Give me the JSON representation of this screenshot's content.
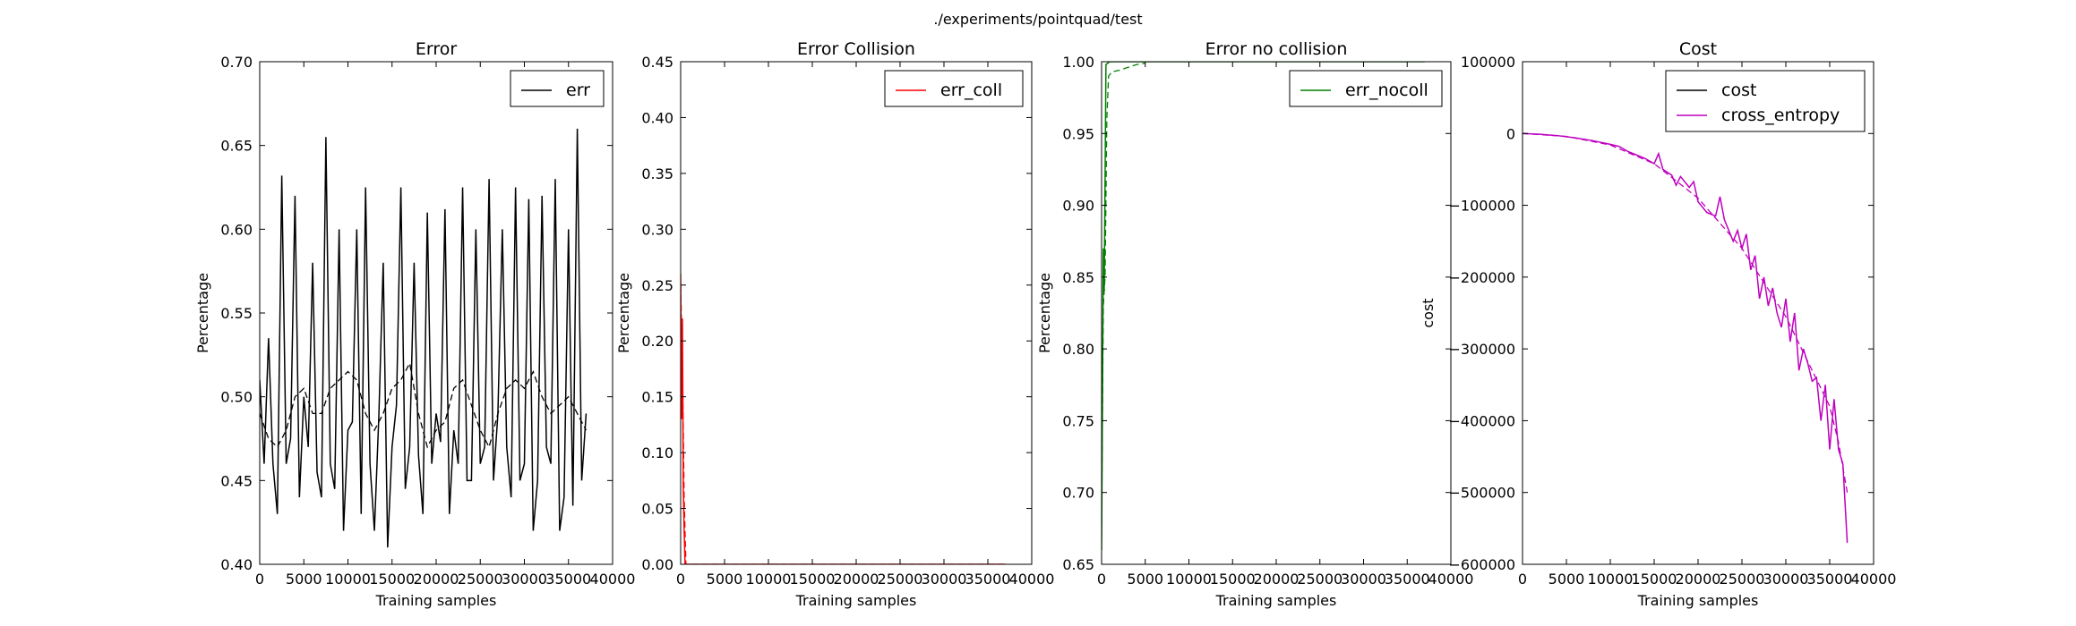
{
  "suptitle": "./experiments/pointquad/test",
  "chart_data": [
    {
      "type": "line",
      "title": "Error",
      "xlabel": "Training samples",
      "ylabel": "Percentage",
      "xlim": [
        0,
        40000
      ],
      "ylim": [
        0.4,
        0.7
      ],
      "xticks": [
        "0",
        "5000",
        "10000",
        "15000",
        "20000",
        "25000",
        "30000",
        "35000",
        "40000"
      ],
      "yticks": [
        "0.40",
        "0.45",
        "0.50",
        "0.55",
        "0.60",
        "0.65",
        "0.70"
      ],
      "legend": "top-right",
      "series": [
        {
          "name": "err",
          "color": "#000000",
          "style": "solid",
          "x": [
            0,
            500,
            1000,
            1500,
            2000,
            2500,
            3000,
            3500,
            4000,
            4500,
            5000,
            5500,
            6000,
            6500,
            7000,
            7500,
            8000,
            8500,
            9000,
            9500,
            10000,
            10500,
            11000,
            11500,
            12000,
            12500,
            13000,
            13500,
            14000,
            14500,
            15000,
            15500,
            16000,
            16500,
            17000,
            17500,
            18000,
            18500,
            19000,
            19500,
            20000,
            20500,
            21000,
            21500,
            22000,
            22500,
            23000,
            23500,
            24000,
            24500,
            25000,
            25500,
            26000,
            26500,
            27000,
            27500,
            28000,
            28500,
            29000,
            29500,
            30000,
            30500,
            31000,
            31500,
            32000,
            32500,
            33000,
            33500,
            34000,
            34500,
            35000,
            35500,
            36000,
            36500,
            37000
          ],
          "y": [
            0.51,
            0.46,
            0.535,
            0.46,
            0.43,
            0.632,
            0.46,
            0.475,
            0.62,
            0.44,
            0.5,
            0.47,
            0.58,
            0.455,
            0.44,
            0.655,
            0.46,
            0.445,
            0.6,
            0.42,
            0.48,
            0.485,
            0.6,
            0.43,
            0.625,
            0.46,
            0.42,
            0.488,
            0.58,
            0.41,
            0.47,
            0.495,
            0.625,
            0.445,
            0.47,
            0.58,
            0.465,
            0.43,
            0.61,
            0.46,
            0.49,
            0.473,
            0.612,
            0.43,
            0.48,
            0.46,
            0.625,
            0.45,
            0.45,
            0.6,
            0.46,
            0.47,
            0.63,
            0.45,
            0.49,
            0.6,
            0.47,
            0.44,
            0.625,
            0.45,
            0.46,
            0.618,
            0.42,
            0.45,
            0.62,
            0.47,
            0.46,
            0.63,
            0.42,
            0.44,
            0.6,
            0.435,
            0.66,
            0.45,
            0.49
          ]
        },
        {
          "name": "",
          "color": "#000000",
          "style": "dashed",
          "x": [
            0,
            1000,
            2000,
            3000,
            4000,
            5000,
            6000,
            7000,
            8000,
            9000,
            10000,
            11000,
            12000,
            13000,
            14000,
            15000,
            16000,
            17000,
            18000,
            19000,
            20000,
            21000,
            22000,
            23000,
            24000,
            25000,
            26000,
            27000,
            28000,
            29000,
            30000,
            31000,
            32000,
            33000,
            34000,
            35000,
            36000,
            37000
          ],
          "y": [
            0.49,
            0.475,
            0.47,
            0.48,
            0.5,
            0.505,
            0.49,
            0.49,
            0.505,
            0.51,
            0.515,
            0.51,
            0.49,
            0.48,
            0.49,
            0.505,
            0.51,
            0.52,
            0.49,
            0.47,
            0.48,
            0.485,
            0.505,
            0.51,
            0.495,
            0.48,
            0.47,
            0.49,
            0.505,
            0.51,
            0.505,
            0.515,
            0.5,
            0.49,
            0.495,
            0.5,
            0.49,
            0.48
          ]
        }
      ]
    },
    {
      "type": "line",
      "title": "Error Collision",
      "xlabel": "Training samples",
      "ylabel": "Percentage",
      "xlim": [
        0,
        40000
      ],
      "ylim": [
        0.0,
        0.45
      ],
      "xticks": [
        "0",
        "5000",
        "10000",
        "15000",
        "20000",
        "25000",
        "30000",
        "35000",
        "40000"
      ],
      "yticks": [
        "0.00",
        "0.05",
        "0.10",
        "0.15",
        "0.20",
        "0.25",
        "0.30",
        "0.35",
        "0.40",
        "0.45"
      ],
      "legend": "top-right",
      "series": [
        {
          "name": "err_coll",
          "color": "#ff0000",
          "style": "solid",
          "x": [
            0,
            100,
            200,
            300,
            400,
            500,
            600,
            37000
          ],
          "y": [
            0.26,
            0.13,
            0.22,
            0.07,
            0.03,
            0.0,
            0.0,
            0.0
          ]
        },
        {
          "name": "",
          "color": "#ff0000",
          "style": "dashed",
          "x": [
            0,
            200,
            400,
            600,
            37000
          ],
          "y": [
            0.25,
            0.18,
            0.06,
            0.0,
            0.0
          ]
        }
      ]
    },
    {
      "type": "line",
      "title": "Error no collision",
      "xlabel": "Training samples",
      "ylabel": "Percentage",
      "xlim": [
        0,
        40000
      ],
      "ylim": [
        0.65,
        1.0
      ],
      "xticks": [
        "0",
        "5000",
        "10000",
        "15000",
        "20000",
        "25000",
        "30000",
        "35000",
        "40000"
      ],
      "yticks": [
        "0.65",
        "0.70",
        "0.75",
        "0.80",
        "0.85",
        "0.90",
        "0.95",
        "1.00"
      ],
      "legend": "top-right",
      "series": [
        {
          "name": "err_nocoll",
          "color": "#008000",
          "style": "solid",
          "x": [
            0,
            200,
            300,
            500,
            700,
            900,
            1200,
            2000,
            37000
          ],
          "y": [
            0.66,
            0.87,
            0.84,
            0.998,
            0.999,
            1.0,
            1.0,
            1.0,
            1.0
          ]
        },
        {
          "name": "",
          "color": "#008000",
          "style": "dashed",
          "x": [
            0,
            200,
            400,
            600,
            800,
            1200,
            2000,
            3000,
            4000,
            5000
          ],
          "y": [
            0.68,
            0.83,
            0.85,
            0.96,
            0.99,
            0.993,
            0.994,
            0.996,
            0.998,
            0.999
          ]
        }
      ]
    },
    {
      "type": "line",
      "title": "Cost",
      "xlabel": "Training samples",
      "ylabel": "cost",
      "xlim": [
        0,
        40000
      ],
      "ylim": [
        -600000,
        100000
      ],
      "xticks": [
        "0",
        "5000",
        "10000",
        "15000",
        "20000",
        "25000",
        "30000",
        "35000",
        "40000"
      ],
      "yticks": [
        "−600000",
        "−500000",
        "−400000",
        "−300000",
        "−200000",
        "−100000",
        "0",
        "100000"
      ],
      "legend": "top-right",
      "series": [
        {
          "name": "cost",
          "color": "#000000",
          "style": "solid",
          "x": [
            0,
            37000
          ],
          "y": [
            0,
            0
          ],
          "hidden": true
        },
        {
          "name": "cross_entropy",
          "color": "#bf00bf",
          "style": "solid",
          "x": [
            0,
            2000,
            4000,
            6000,
            8000,
            10000,
            11000,
            12000,
            13000,
            14000,
            15000,
            15500,
            16000,
            17000,
            17500,
            18000,
            19000,
            19500,
            20000,
            21000,
            22000,
            22500,
            23000,
            24000,
            24500,
            25000,
            25500,
            26000,
            26500,
            27000,
            27500,
            28000,
            28500,
            29000,
            29500,
            30000,
            30500,
            31000,
            31500,
            32000,
            32500,
            33000,
            33500,
            34000,
            34500,
            35000,
            35500,
            36000,
            36500,
            37000
          ],
          "y": [
            0,
            -1000,
            -3000,
            -6000,
            -10000,
            -15000,
            -18000,
            -25000,
            -30000,
            -35000,
            -42000,
            -28000,
            -50000,
            -58000,
            -72000,
            -60000,
            -75000,
            -67000,
            -95000,
            -110000,
            -115000,
            -88000,
            -120000,
            -150000,
            -135000,
            -160000,
            -140000,
            -190000,
            -170000,
            -230000,
            -200000,
            -240000,
            -215000,
            -250000,
            -270000,
            -230000,
            -290000,
            -250000,
            -330000,
            -300000,
            -320000,
            -345000,
            -340000,
            -400000,
            -350000,
            -440000,
            -370000,
            -440000,
            -460000,
            -570000
          ]
        },
        {
          "name": "",
          "color": "#bf00bf",
          "style": "dashed",
          "x": [
            0,
            5000,
            10000,
            15000,
            20000,
            25000,
            30000,
            33000,
            35000,
            36000,
            37000
          ],
          "y": [
            0,
            -4000,
            -16000,
            -42000,
            -90000,
            -160000,
            -255000,
            -330000,
            -380000,
            -430000,
            -500000
          ]
        }
      ]
    }
  ]
}
